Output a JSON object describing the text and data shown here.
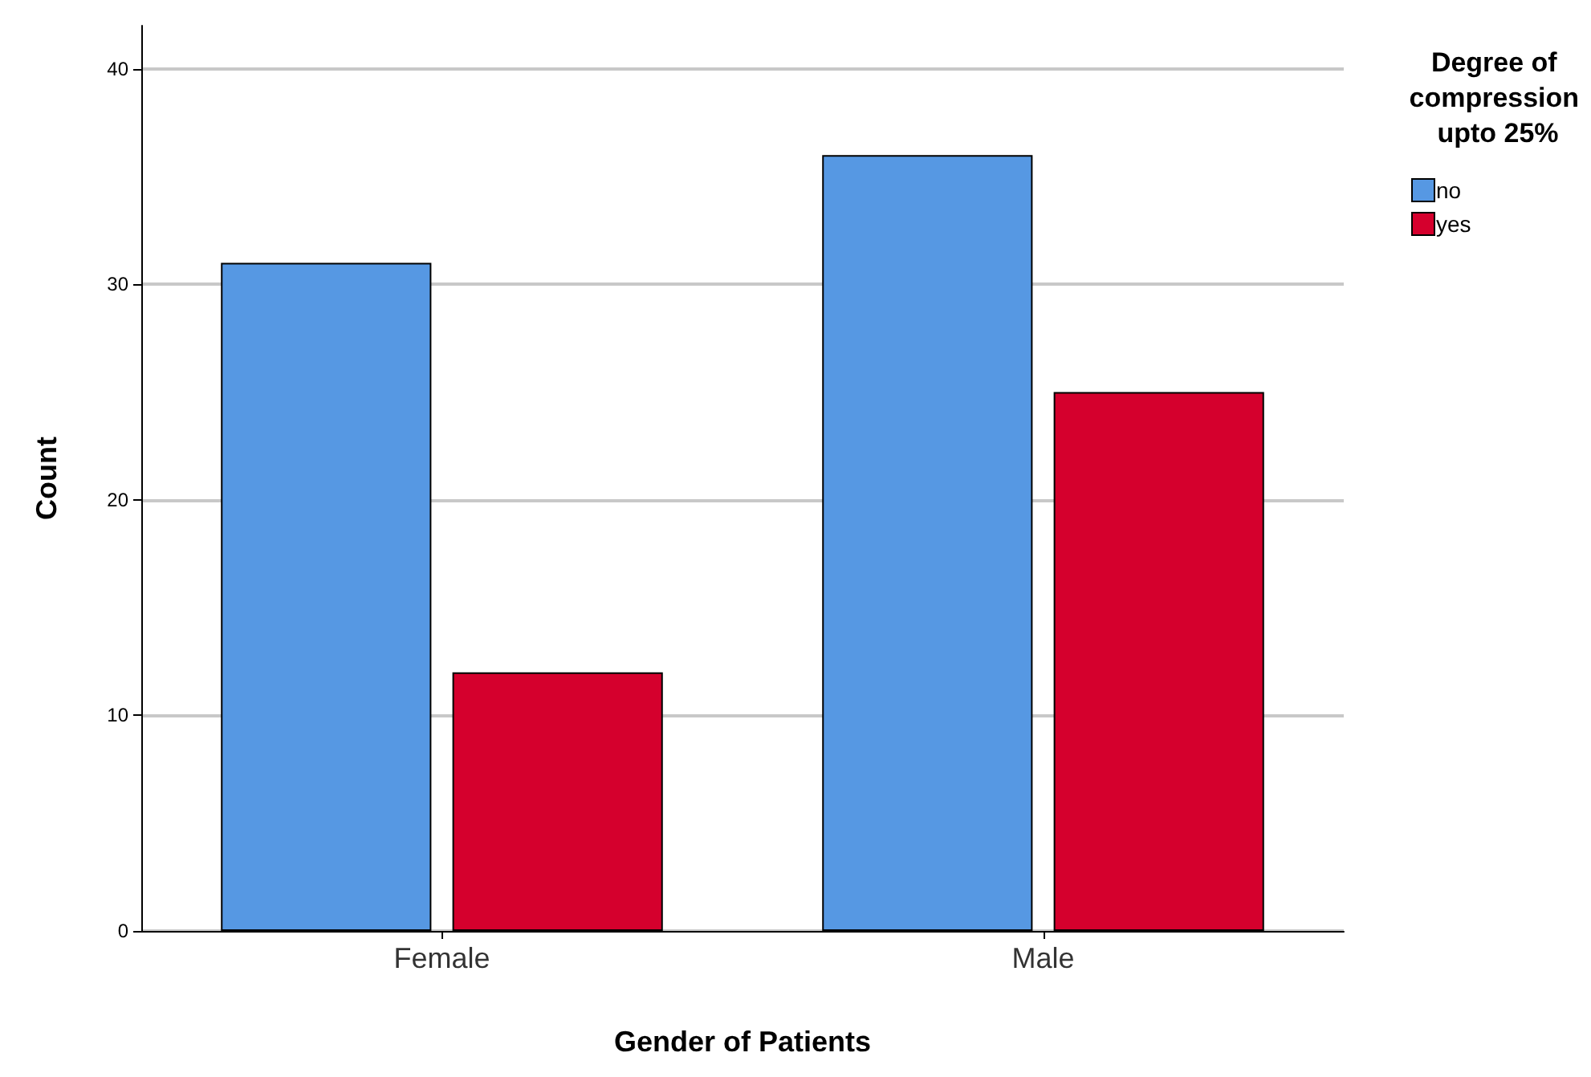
{
  "chart_data": {
    "type": "bar",
    "xlabel": "Gender of Patients",
    "ylabel": "Count",
    "legend_title": "Degree of compression upto 25%",
    "categories": [
      "Female",
      "Male"
    ],
    "series": [
      {
        "name": "no",
        "color": "#5698e3",
        "values": [
          31,
          36
        ]
      },
      {
        "name": "yes",
        "color": "#d5002d",
        "values": [
          12,
          25
        ]
      }
    ],
    "ylim": [
      0,
      42
    ],
    "yticks": [
      0,
      10,
      20,
      30,
      40
    ],
    "grid": "y",
    "legend": "top right"
  }
}
